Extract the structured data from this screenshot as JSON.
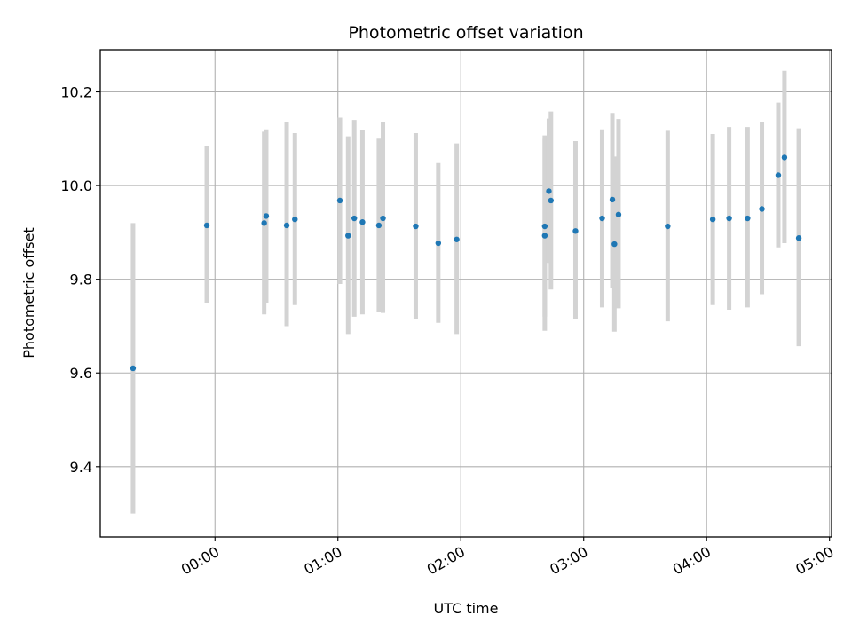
{
  "chart_data": {
    "type": "scatter",
    "title": "Photometric offset variation",
    "xlabel": "UTC time",
    "ylabel": "Photometric offset",
    "x_axis_kind": "time",
    "xlim": [
      "-00:56",
      "05:01"
    ],
    "ylim": [
      9.25,
      10.29
    ],
    "grid": true,
    "colors": {
      "point": "#1f77b4",
      "errorbar": "#d3d3d3",
      "grid": "#b0b0b0"
    },
    "xticks": [
      {
        "value": "00:00",
        "label": "00:00"
      },
      {
        "value": "01:00",
        "label": "01:00"
      },
      {
        "value": "02:00",
        "label": "02:00"
      },
      {
        "value": "03:00",
        "label": "03:00"
      },
      {
        "value": "04:00",
        "label": "04:00"
      },
      {
        "value": "05:00",
        "label": "05:00"
      }
    ],
    "yticks": [
      {
        "value": 9.4,
        "label": "9.4"
      },
      {
        "value": 9.6,
        "label": "9.6"
      },
      {
        "value": 9.8,
        "label": "9.8"
      },
      {
        "value": 10.0,
        "label": "10.0"
      },
      {
        "value": 10.2,
        "label": "10.2"
      }
    ],
    "points": [
      {
        "x": "-00:40",
        "y": 9.61,
        "ylow": 9.3,
        "yhigh": 9.92
      },
      {
        "x": "-00:04",
        "y": 9.915,
        "ylow": 9.75,
        "yhigh": 10.085
      },
      {
        "x": "00:24",
        "y": 9.92,
        "ylow": 9.725,
        "yhigh": 10.115
      },
      {
        "x": "00:25",
        "y": 9.935,
        "ylow": 9.75,
        "yhigh": 10.12
      },
      {
        "x": "00:35",
        "y": 9.915,
        "ylow": 9.7,
        "yhigh": 10.135
      },
      {
        "x": "00:39",
        "y": 9.928,
        "ylow": 9.745,
        "yhigh": 10.112
      },
      {
        "x": "01:01",
        "y": 9.968,
        "ylow": 9.79,
        "yhigh": 10.145
      },
      {
        "x": "01:05",
        "y": 9.893,
        "ylow": 9.683,
        "yhigh": 10.105
      },
      {
        "x": "01:08",
        "y": 9.93,
        "ylow": 9.72,
        "yhigh": 10.14
      },
      {
        "x": "01:12",
        "y": 9.922,
        "ylow": 9.725,
        "yhigh": 10.118
      },
      {
        "x": "01:20",
        "y": 9.915,
        "ylow": 9.73,
        "yhigh": 10.1
      },
      {
        "x": "01:22",
        "y": 9.93,
        "ylow": 9.728,
        "yhigh": 10.135
      },
      {
        "x": "01:38",
        "y": 9.913,
        "ylow": 9.715,
        "yhigh": 10.112
      },
      {
        "x": "01:49",
        "y": 9.877,
        "ylow": 9.707,
        "yhigh": 10.048
      },
      {
        "x": "01:58",
        "y": 9.885,
        "ylow": 9.683,
        "yhigh": 10.09
      },
      {
        "x": "02:41",
        "y": 9.913,
        "ylow": 9.72,
        "yhigh": 10.107
      },
      {
        "x": "02:41",
        "y": 9.893,
        "ylow": 9.69,
        "yhigh": 10.1
      },
      {
        "x": "02:43",
        "y": 9.988,
        "ylow": 9.835,
        "yhigh": 10.143
      },
      {
        "x": "02:44",
        "y": 9.968,
        "ylow": 9.778,
        "yhigh": 10.158
      },
      {
        "x": "02:56",
        "y": 9.903,
        "ylow": 9.716,
        "yhigh": 10.095
      },
      {
        "x": "03:09",
        "y": 9.93,
        "ylow": 9.74,
        "yhigh": 10.12
      },
      {
        "x": "03:14",
        "y": 9.97,
        "ylow": 9.782,
        "yhigh": 10.155
      },
      {
        "x": "03:15",
        "y": 9.875,
        "ylow": 9.688,
        "yhigh": 10.062
      },
      {
        "x": "03:17",
        "y": 9.938,
        "ylow": 9.738,
        "yhigh": 10.142
      },
      {
        "x": "03:41",
        "y": 9.913,
        "ylow": 9.71,
        "yhigh": 10.117
      },
      {
        "x": "04:03",
        "y": 9.928,
        "ylow": 9.745,
        "yhigh": 10.11
      },
      {
        "x": "04:11",
        "y": 9.93,
        "ylow": 9.735,
        "yhigh": 10.125
      },
      {
        "x": "04:20",
        "y": 9.93,
        "ylow": 9.74,
        "yhigh": 10.125
      },
      {
        "x": "04:27",
        "y": 9.95,
        "ylow": 9.768,
        "yhigh": 10.135
      },
      {
        "x": "04:35",
        "y": 10.022,
        "ylow": 9.868,
        "yhigh": 10.177
      },
      {
        "x": "04:38",
        "y": 10.06,
        "ylow": 9.877,
        "yhigh": 10.245
      },
      {
        "x": "04:45",
        "y": 9.888,
        "ylow": 9.657,
        "yhigh": 10.122
      }
    ]
  }
}
